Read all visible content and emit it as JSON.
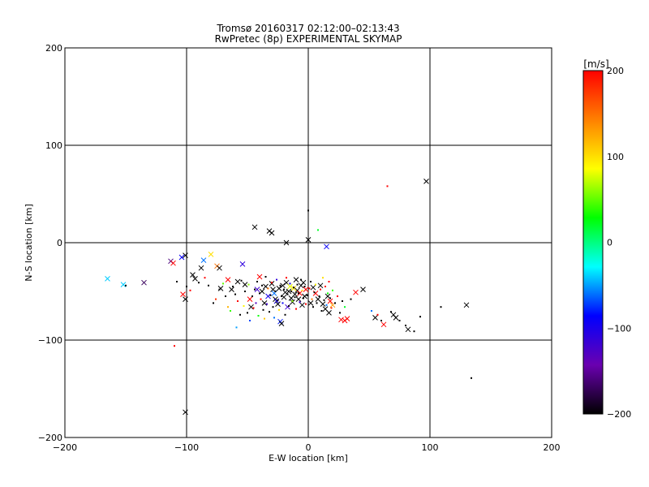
{
  "chart_data": {
    "type": "scatter",
    "title": "Tromsø 20160317 02:12:00–02:13:43",
    "subtitle": "RwPretec (8p) EXPERIMENTAL SKYMAP",
    "xlabel": "E-W location [km]",
    "ylabel": "N-S location [km]",
    "xlim": [
      -200,
      200
    ],
    "ylim": [
      -200,
      200
    ],
    "x_ticks": [
      -200,
      -100,
      0,
      100,
      200
    ],
    "y_ticks": [
      -200,
      -100,
      0,
      100,
      200
    ],
    "grid": true,
    "colorbar": {
      "label": "[m/s]",
      "range": [
        -200,
        200
      ],
      "ticks": [
        -200,
        -100,
        0,
        100,
        200
      ],
      "colors": [
        "#000000",
        "#6a00b0",
        "#0000ff",
        "#00ffff",
        "#00ff00",
        "#ffff00",
        "#ff8000",
        "#ff0000"
      ]
    },
    "points": [
      {
        "x": -165,
        "y": -37,
        "v": -40,
        "m": "x"
      },
      {
        "x": -152,
        "y": -43,
        "v": -40,
        "m": "x"
      },
      {
        "x": -135,
        "y": -41,
        "v": -170,
        "m": "x"
      },
      {
        "x": -113,
        "y": -19,
        "v": -160,
        "m": "x"
      },
      {
        "x": -111,
        "y": -21,
        "v": 200,
        "m": "x"
      },
      {
        "x": -104,
        "y": -15,
        "v": -90,
        "m": "x"
      },
      {
        "x": -101,
        "y": -13,
        "v": -200,
        "m": "x"
      },
      {
        "x": -103,
        "y": -53,
        "v": 200,
        "m": "x"
      },
      {
        "x": -101,
        "y": -58,
        "v": -200,
        "m": "x"
      },
      {
        "x": -101,
        "y": -174,
        "v": -200,
        "m": "x"
      },
      {
        "x": -95,
        "y": -33,
        "v": -200,
        "m": "x"
      },
      {
        "x": -93,
        "y": -37,
        "v": -200,
        "m": "x"
      },
      {
        "x": -88,
        "y": -26,
        "v": -200,
        "m": "x"
      },
      {
        "x": -86,
        "y": -18,
        "v": -60,
        "m": "x"
      },
      {
        "x": -80,
        "y": -12,
        "v": 100,
        "m": "x"
      },
      {
        "x": -75,
        "y": -24,
        "v": 150,
        "m": "x"
      },
      {
        "x": -73,
        "y": -26,
        "v": -200,
        "m": "x"
      },
      {
        "x": -72,
        "y": -47,
        "v": -200,
        "m": "x"
      },
      {
        "x": -66,
        "y": -38,
        "v": 200,
        "m": "x"
      },
      {
        "x": -63,
        "y": -48,
        "v": -200,
        "m": "x"
      },
      {
        "x": -58,
        "y": -40,
        "v": -200,
        "m": "x"
      },
      {
        "x": -54,
        "y": -22,
        "v": -110,
        "m": "x"
      },
      {
        "x": -52,
        "y": -43,
        "v": -200,
        "m": "x"
      },
      {
        "x": -48,
        "y": -58,
        "v": 200,
        "m": "x"
      },
      {
        "x": -47,
        "y": -66,
        "v": -200,
        "m": "x"
      },
      {
        "x": -44,
        "y": 16,
        "v": -200,
        "m": "x"
      },
      {
        "x": -42,
        "y": -48,
        "v": -120,
        "m": "x"
      },
      {
        "x": -40,
        "y": -35,
        "v": 200,
        "m": "x"
      },
      {
        "x": -38,
        "y": -50,
        "v": -200,
        "m": "x"
      },
      {
        "x": -36,
        "y": -62,
        "v": -200,
        "m": "x"
      },
      {
        "x": -35,
        "y": -45,
        "v": -200,
        "m": "x"
      },
      {
        "x": -33,
        "y": -55,
        "v": -100,
        "m": "x"
      },
      {
        "x": -32,
        "y": 12,
        "v": -200,
        "m": "x"
      },
      {
        "x": -30,
        "y": 10,
        "v": -200,
        "m": "x"
      },
      {
        "x": -30,
        "y": -42,
        "v": -200,
        "m": "x"
      },
      {
        "x": -29,
        "y": -48,
        "v": -200,
        "m": "x"
      },
      {
        "x": -28,
        "y": -52,
        "v": -60,
        "m": "x"
      },
      {
        "x": -27,
        "y": -58,
        "v": -200,
        "m": "x"
      },
      {
        "x": -26,
        "y": -60,
        "v": -100,
        "m": "x"
      },
      {
        "x": -25,
        "y": -63,
        "v": -200,
        "m": "x"
      },
      {
        "x": -24,
        "y": -47,
        "v": -200,
        "m": "x"
      },
      {
        "x": -23,
        "y": -81,
        "v": -80,
        "m": "x"
      },
      {
        "x": -22,
        "y": -83,
        "v": -200,
        "m": "x"
      },
      {
        "x": -21,
        "y": -44,
        "v": -200,
        "m": "x"
      },
      {
        "x": -20,
        "y": -56,
        "v": -200,
        "m": "x"
      },
      {
        "x": -19,
        "y": -51,
        "v": -200,
        "m": "x"
      },
      {
        "x": -18,
        "y": -41,
        "v": -200,
        "m": "x"
      },
      {
        "x": -18,
        "y": 0,
        "v": -200,
        "m": "x"
      },
      {
        "x": -17,
        "y": -66,
        "v": -120,
        "m": "x"
      },
      {
        "x": -16,
        "y": -50,
        "v": -200,
        "m": "x"
      },
      {
        "x": -15,
        "y": -45,
        "v": 80,
        "m": "x"
      },
      {
        "x": -14,
        "y": -57,
        "v": -200,
        "m": "x"
      },
      {
        "x": -13,
        "y": -61,
        "v": -200,
        "m": "x"
      },
      {
        "x": -12,
        "y": -47,
        "v": 100,
        "m": "x"
      },
      {
        "x": -11,
        "y": -53,
        "v": -200,
        "m": "x"
      },
      {
        "x": -10,
        "y": -38,
        "v": -200,
        "m": "x"
      },
      {
        "x": -9,
        "y": -49,
        "v": -200,
        "m": "x"
      },
      {
        "x": -8,
        "y": -58,
        "v": -200,
        "m": "x"
      },
      {
        "x": -7,
        "y": -52,
        "v": 200,
        "m": "x"
      },
      {
        "x": -6,
        "y": -44,
        "v": -200,
        "m": "x"
      },
      {
        "x": -5,
        "y": -64,
        "v": -200,
        "m": "x"
      },
      {
        "x": -4,
        "y": -41,
        "v": -200,
        "m": "x"
      },
      {
        "x": -3,
        "y": -55,
        "v": -200,
        "m": "x"
      },
      {
        "x": -2,
        "y": -48,
        "v": 200,
        "m": "x"
      },
      {
        "x": 0,
        "y": 3,
        "v": -200,
        "m": "x"
      },
      {
        "x": 2,
        "y": -62,
        "v": -200,
        "m": "x"
      },
      {
        "x": 4,
        "y": -46,
        "v": -200,
        "m": "x"
      },
      {
        "x": 6,
        "y": -52,
        "v": 200,
        "m": "x"
      },
      {
        "x": 8,
        "y": -58,
        "v": -200,
        "m": "x"
      },
      {
        "x": 10,
        "y": -44,
        "v": -200,
        "m": "x"
      },
      {
        "x": 12,
        "y": -63,
        "v": -200,
        "m": "x"
      },
      {
        "x": 14,
        "y": -68,
        "v": -200,
        "m": "x"
      },
      {
        "x": 15,
        "y": -4,
        "v": -90,
        "m": "x"
      },
      {
        "x": 16,
        "y": -55,
        "v": -200,
        "m": "x"
      },
      {
        "x": 17,
        "y": -72,
        "v": -200,
        "m": "x"
      },
      {
        "x": 18,
        "y": -60,
        "v": 200,
        "m": "x"
      },
      {
        "x": 20,
        "y": -64,
        "v": 130,
        "m": "x"
      },
      {
        "x": 27,
        "y": -79,
        "v": 200,
        "m": "x"
      },
      {
        "x": 30,
        "y": -80,
        "v": 200,
        "m": "x"
      },
      {
        "x": 32,
        "y": -78,
        "v": 200,
        "m": "x"
      },
      {
        "x": 39,
        "y": -51,
        "v": 200,
        "m": "x"
      },
      {
        "x": 45,
        "y": -48,
        "v": -200,
        "m": "x"
      },
      {
        "x": 55,
        "y": -77,
        "v": -200,
        "m": "x"
      },
      {
        "x": 62,
        "y": -84,
        "v": 200,
        "m": "x"
      },
      {
        "x": 70,
        "y": -74,
        "v": -200,
        "m": "x"
      },
      {
        "x": 72,
        "y": -77,
        "v": -200,
        "m": "x"
      },
      {
        "x": 82,
        "y": -89,
        "v": -200,
        "m": "x"
      },
      {
        "x": 97,
        "y": 63,
        "v": -200,
        "m": "x"
      },
      {
        "x": 130,
        "y": -64,
        "v": -200,
        "m": "x"
      },
      {
        "x": -150,
        "y": -44,
        "v": -200,
        "m": "+"
      },
      {
        "x": -110,
        "y": -106,
        "v": 200,
        "m": "+"
      },
      {
        "x": -108,
        "y": -40,
        "v": -200,
        "m": "+"
      },
      {
        "x": -100,
        "y": -45,
        "v": -200,
        "m": "+"
      },
      {
        "x": -97,
        "y": -49,
        "v": 200,
        "m": "+"
      },
      {
        "x": -90,
        "y": -41,
        "v": -200,
        "m": "+"
      },
      {
        "x": -85,
        "y": -36,
        "v": 200,
        "m": "+"
      },
      {
        "x": -82,
        "y": -44,
        "v": -200,
        "m": "+"
      },
      {
        "x": -78,
        "y": -62,
        "v": -200,
        "m": "+"
      },
      {
        "x": -76,
        "y": -58,
        "v": 180,
        "m": "+"
      },
      {
        "x": -73,
        "y": -48,
        "v": -200,
        "m": "+"
      },
      {
        "x": -70,
        "y": -42,
        "v": 50,
        "m": "+"
      },
      {
        "x": -68,
        "y": -55,
        "v": -200,
        "m": "+"
      },
      {
        "x": -66,
        "y": -66,
        "v": 120,
        "m": "+"
      },
      {
        "x": -64,
        "y": -70,
        "v": 40,
        "m": "+"
      },
      {
        "x": -62,
        "y": -45,
        "v": -200,
        "m": "+"
      },
      {
        "x": -60,
        "y": -53,
        "v": -200,
        "m": "+"
      },
      {
        "x": -59,
        "y": -87,
        "v": -50,
        "m": "+"
      },
      {
        "x": -58,
        "y": -60,
        "v": 200,
        "m": "+"
      },
      {
        "x": -56,
        "y": -74,
        "v": -200,
        "m": "+"
      },
      {
        "x": -55,
        "y": -39,
        "v": -200,
        "m": "+"
      },
      {
        "x": -53,
        "y": -65,
        "v": 90,
        "m": "+"
      },
      {
        "x": -52,
        "y": -50,
        "v": -200,
        "m": "+"
      },
      {
        "x": -50,
        "y": -72,
        "v": -200,
        "m": "+"
      },
      {
        "x": -49,
        "y": -43,
        "v": 60,
        "m": "+"
      },
      {
        "x": -48,
        "y": -80,
        "v": -70,
        "m": "+"
      },
      {
        "x": -46,
        "y": -55,
        "v": -200,
        "m": "+"
      },
      {
        "x": -45,
        "y": -67,
        "v": 200,
        "m": "+"
      },
      {
        "x": -44,
        "y": -48,
        "v": -200,
        "m": "+"
      },
      {
        "x": -43,
        "y": -62,
        "v": -130,
        "m": "+"
      },
      {
        "x": -42,
        "y": -40,
        "v": -200,
        "m": "+"
      },
      {
        "x": -41,
        "y": -75,
        "v": 30,
        "m": "+"
      },
      {
        "x": -40,
        "y": -52,
        "v": -200,
        "m": "+"
      },
      {
        "x": -39,
        "y": -58,
        "v": 200,
        "m": "+"
      },
      {
        "x": -38,
        "y": -44,
        "v": -200,
        "m": "+"
      },
      {
        "x": -37,
        "y": -69,
        "v": -200,
        "m": "+"
      },
      {
        "x": -36,
        "y": -78,
        "v": 110,
        "m": "+"
      },
      {
        "x": -35,
        "y": -35,
        "v": -200,
        "m": "+"
      },
      {
        "x": -34,
        "y": -63,
        "v": -120,
        "m": "+"
      },
      {
        "x": -33,
        "y": -47,
        "v": 150,
        "m": "+"
      },
      {
        "x": -32,
        "y": -71,
        "v": -200,
        "m": "+"
      },
      {
        "x": -31,
        "y": -54,
        "v": -200,
        "m": "+"
      },
      {
        "x": -30,
        "y": -41,
        "v": 200,
        "m": "+"
      },
      {
        "x": -29,
        "y": -66,
        "v": -200,
        "m": "+"
      },
      {
        "x": -28,
        "y": -77,
        "v": -60,
        "m": "+"
      },
      {
        "x": -27,
        "y": -50,
        "v": -200,
        "m": "+"
      },
      {
        "x": -26,
        "y": -38,
        "v": -110,
        "m": "+"
      },
      {
        "x": -25,
        "y": -59,
        "v": -200,
        "m": "+"
      },
      {
        "x": -24,
        "y": -69,
        "v": 100,
        "m": "+"
      },
      {
        "x": -23,
        "y": -44,
        "v": -200,
        "m": "+"
      },
      {
        "x": -22,
        "y": -55,
        "v": -200,
        "m": "+"
      },
      {
        "x": -21,
        "y": -62,
        "v": -90,
        "m": "+"
      },
      {
        "x": -20,
        "y": -48,
        "v": -200,
        "m": "+"
      },
      {
        "x": -19,
        "y": -74,
        "v": -200,
        "m": "+"
      },
      {
        "x": -18,
        "y": -36,
        "v": 200,
        "m": "+"
      },
      {
        "x": -17,
        "y": -53,
        "v": -200,
        "m": "+"
      },
      {
        "x": -16,
        "y": -65,
        "v": -200,
        "m": "+"
      },
      {
        "x": -15,
        "y": -42,
        "v": -100,
        "m": "+"
      },
      {
        "x": -14,
        "y": -50,
        "v": -200,
        "m": "+"
      },
      {
        "x": -13,
        "y": -60,
        "v": 60,
        "m": "+"
      },
      {
        "x": -12,
        "y": -46,
        "v": -200,
        "m": "+"
      },
      {
        "x": -11,
        "y": -56,
        "v": -200,
        "m": "+"
      },
      {
        "x": -10,
        "y": -68,
        "v": 200,
        "m": "+"
      },
      {
        "x": -9,
        "y": -43,
        "v": -200,
        "m": "+"
      },
      {
        "x": -8,
        "y": -52,
        "v": -200,
        "m": "+"
      },
      {
        "x": -7,
        "y": -61,
        "v": -120,
        "m": "+"
      },
      {
        "x": -6,
        "y": -38,
        "v": -200,
        "m": "+"
      },
      {
        "x": -5,
        "y": -49,
        "v": 100,
        "m": "+"
      },
      {
        "x": -4,
        "y": -57,
        "v": -200,
        "m": "+"
      },
      {
        "x": -3,
        "y": -45,
        "v": -200,
        "m": "+"
      },
      {
        "x": -2,
        "y": -63,
        "v": 200,
        "m": "+"
      },
      {
        "x": -1,
        "y": -54,
        "v": -200,
        "m": "+"
      },
      {
        "x": 0,
        "y": 33,
        "v": -200,
        "m": "+"
      },
      {
        "x": 1,
        "y": -47,
        "v": 200,
        "m": "+"
      },
      {
        "x": 2,
        "y": -40,
        "v": -200,
        "m": "+"
      },
      {
        "x": 3,
        "y": -58,
        "v": 150,
        "m": "+"
      },
      {
        "x": 4,
        "y": -66,
        "v": -200,
        "m": "+"
      },
      {
        "x": 5,
        "y": -51,
        "v": -200,
        "m": "+"
      },
      {
        "x": 6,
        "y": -43,
        "v": 90,
        "m": "+"
      },
      {
        "x": 7,
        "y": -62,
        "v": -200,
        "m": "+"
      },
      {
        "x": 8,
        "y": 13,
        "v": 20,
        "m": "+"
      },
      {
        "x": 9,
        "y": -55,
        "v": -200,
        "m": "+"
      },
      {
        "x": 10,
        "y": -48,
        "v": 200,
        "m": "+"
      },
      {
        "x": 11,
        "y": -70,
        "v": -200,
        "m": "+"
      },
      {
        "x": 12,
        "y": -36,
        "v": 100,
        "m": "+"
      },
      {
        "x": 13,
        "y": -59,
        "v": -200,
        "m": "+"
      },
      {
        "x": 14,
        "y": -45,
        "v": 200,
        "m": "+"
      },
      {
        "x": 15,
        "y": -64,
        "v": -60,
        "m": "+"
      },
      {
        "x": 16,
        "y": -52,
        "v": 30,
        "m": "+"
      },
      {
        "x": 17,
        "y": -40,
        "v": 200,
        "m": "+"
      },
      {
        "x": 18,
        "y": -57,
        "v": -200,
        "m": "+"
      },
      {
        "x": 19,
        "y": -67,
        "v": 180,
        "m": "+"
      },
      {
        "x": 20,
        "y": -49,
        "v": 40,
        "m": "+"
      },
      {
        "x": 22,
        "y": -62,
        "v": -200,
        "m": "+"
      },
      {
        "x": 24,
        "y": -55,
        "v": 200,
        "m": "+"
      },
      {
        "x": 26,
        "y": -72,
        "v": -200,
        "m": "+"
      },
      {
        "x": 28,
        "y": -60,
        "v": -200,
        "m": "+"
      },
      {
        "x": 30,
        "y": -66,
        "v": 20,
        "m": "+"
      },
      {
        "x": 35,
        "y": -58,
        "v": -200,
        "m": "+"
      },
      {
        "x": 52,
        "y": -70,
        "v": -60,
        "m": "+"
      },
      {
        "x": 57,
        "y": -74,
        "v": 200,
        "m": "+"
      },
      {
        "x": 60,
        "y": -80,
        "v": -200,
        "m": "+"
      },
      {
        "x": 65,
        "y": 58,
        "v": 200,
        "m": "+"
      },
      {
        "x": 68,
        "y": -71,
        "v": -200,
        "m": "+"
      },
      {
        "x": 75,
        "y": -80,
        "v": -200,
        "m": "+"
      },
      {
        "x": 80,
        "y": -85,
        "v": -200,
        "m": "+"
      },
      {
        "x": 87,
        "y": -91,
        "v": -200,
        "m": "+"
      },
      {
        "x": 92,
        "y": -76,
        "v": -200,
        "m": "+"
      },
      {
        "x": 109,
        "y": -66,
        "v": -200,
        "m": "+"
      },
      {
        "x": 134,
        "y": -139,
        "v": -200,
        "m": "+"
      }
    ]
  }
}
